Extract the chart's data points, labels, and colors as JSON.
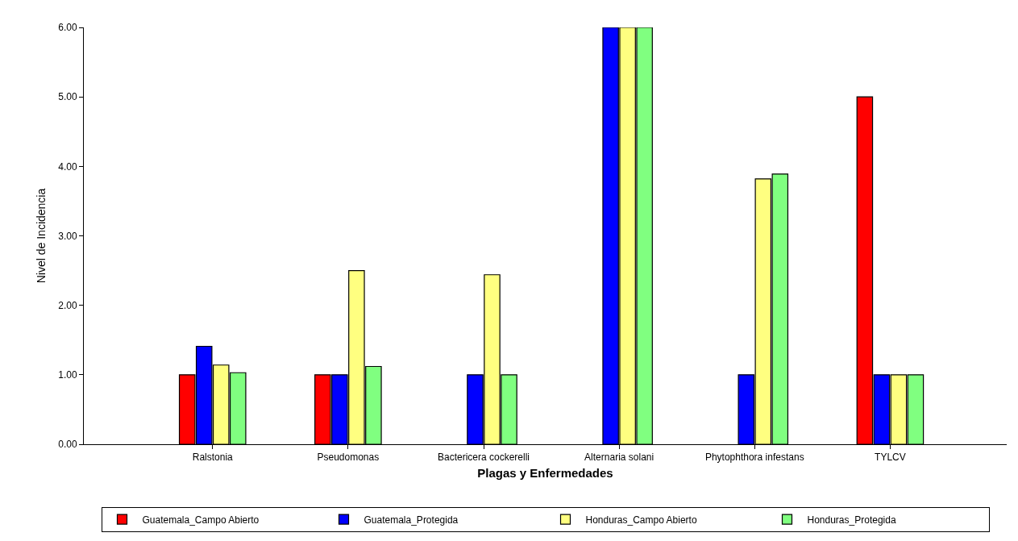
{
  "chart_data": {
    "type": "bar",
    "xlabel": "Plagas y Enfermedades",
    "ylabel": "Nivel de Incidencia",
    "categories": [
      "Ralstonia",
      "Pseudomonas",
      "Bactericera cockerelli",
      "Alternaria solani",
      "Phytophthora infestans",
      "TYLCV"
    ],
    "series": [
      {
        "name": "Guatemala_Campo Abierto",
        "color": "#ff0000",
        "values": [
          1.0,
          1.0,
          null,
          null,
          null,
          5.0
        ]
      },
      {
        "name": "Guatemala_Protegida",
        "color": "#0000ff",
        "values": [
          1.41,
          1.0,
          1.0,
          6.0,
          1.0,
          1.0
        ]
      },
      {
        "name": "Honduras_Campo Abierto",
        "color": "#ffff80",
        "values": [
          1.14,
          2.5,
          2.44,
          6.0,
          3.82,
          1.0
        ]
      },
      {
        "name": "Honduras_Protegida",
        "color": "#80ff80",
        "values": [
          1.03,
          1.12,
          1.0,
          6.0,
          3.89,
          1.0
        ]
      }
    ],
    "ylim": [
      0,
      6
    ],
    "yticks": [
      {
        "value": 0,
        "label": "0.00"
      },
      {
        "value": 1,
        "label": "1.00"
      },
      {
        "value": 2,
        "label": "2.00"
      },
      {
        "value": 3,
        "label": "3.00"
      },
      {
        "value": 4,
        "label": "4.00"
      },
      {
        "value": 5,
        "label": "5.00"
      },
      {
        "value": 6,
        "label": "6.00"
      }
    ],
    "grid": false,
    "legend": "bottom"
  }
}
